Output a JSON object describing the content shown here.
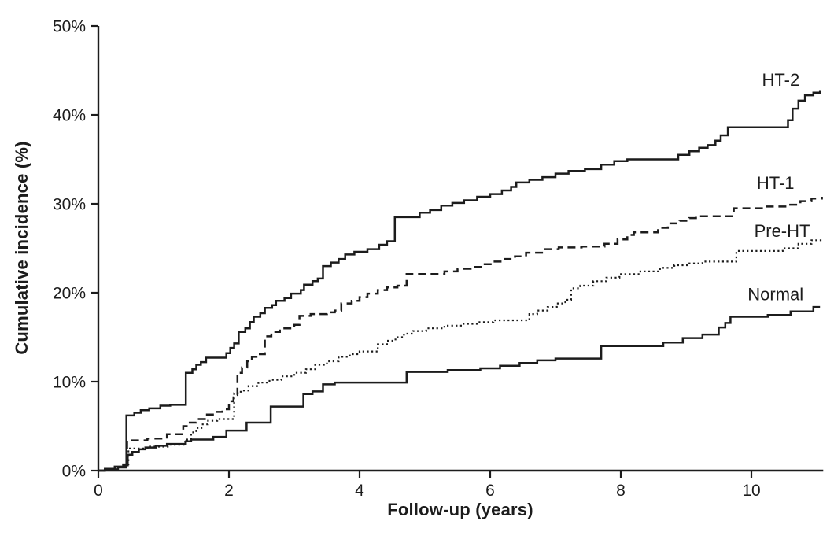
{
  "figure": {
    "background": "#ffffff",
    "ink_color": "#1c1c1c"
  },
  "chart_data": {
    "type": "line",
    "subtype": "step-cumulative-incidence",
    "xlabel": "Follow-up (years)",
    "ylabel": "Cumulative incidence (%)",
    "xlim": [
      0,
      11.1
    ],
    "ylim": [
      0,
      50
    ],
    "x_ticks": [
      0,
      2,
      4,
      6,
      8,
      10
    ],
    "x_tick_labels": [
      "0",
      "2",
      "4",
      "6",
      "8",
      "10"
    ],
    "y_ticks": [
      0,
      10,
      20,
      30,
      40,
      50
    ],
    "y_tick_labels": [
      "0%",
      "10%",
      "20%",
      "30%",
      "40%",
      "50%"
    ],
    "grid": false,
    "legend_position": "inline-right-labels",
    "series": [
      {
        "name": "HT-2",
        "line_style": "solid",
        "label_anchor": [
          10.45,
          43.9
        ],
        "points": [
          [
            0,
            0
          ],
          [
            0.1,
            0.2
          ],
          [
            0.25,
            0.45
          ],
          [
            0.38,
            0.7
          ],
          [
            0.43,
            6.2
          ],
          [
            0.55,
            6.5
          ],
          [
            0.65,
            6.8
          ],
          [
            0.78,
            7.0
          ],
          [
            0.95,
            7.3
          ],
          [
            1.1,
            7.4
          ],
          [
            1.34,
            11.0
          ],
          [
            1.44,
            11.4
          ],
          [
            1.5,
            11.9
          ],
          [
            1.57,
            12.2
          ],
          [
            1.65,
            12.7
          ],
          [
            1.96,
            13.2
          ],
          [
            2.02,
            13.8
          ],
          [
            2.08,
            14.3
          ],
          [
            2.15,
            15.6
          ],
          [
            2.25,
            16.0
          ],
          [
            2.32,
            16.7
          ],
          [
            2.38,
            17.3
          ],
          [
            2.48,
            17.7
          ],
          [
            2.55,
            18.3
          ],
          [
            2.66,
            18.6
          ],
          [
            2.72,
            19.1
          ],
          [
            2.85,
            19.4
          ],
          [
            2.95,
            19.9
          ],
          [
            3.1,
            20.3
          ],
          [
            3.15,
            20.9
          ],
          [
            3.28,
            21.3
          ],
          [
            3.36,
            21.6
          ],
          [
            3.44,
            23.0
          ],
          [
            3.56,
            23.4
          ],
          [
            3.68,
            23.8
          ],
          [
            3.78,
            24.3
          ],
          [
            3.92,
            24.6
          ],
          [
            4.12,
            24.9
          ],
          [
            4.3,
            25.4
          ],
          [
            4.42,
            25.8
          ],
          [
            4.54,
            28.5
          ],
          [
            4.92,
            29.0
          ],
          [
            5.08,
            29.3
          ],
          [
            5.25,
            29.8
          ],
          [
            5.42,
            30.1
          ],
          [
            5.6,
            30.4
          ],
          [
            5.8,
            30.8
          ],
          [
            6.0,
            31.1
          ],
          [
            6.18,
            31.5
          ],
          [
            6.32,
            31.9
          ],
          [
            6.4,
            32.4
          ],
          [
            6.6,
            32.7
          ],
          [
            6.8,
            33.0
          ],
          [
            7.0,
            33.4
          ],
          [
            7.2,
            33.7
          ],
          [
            7.45,
            33.9
          ],
          [
            7.7,
            34.4
          ],
          [
            7.9,
            34.8
          ],
          [
            8.1,
            35.0
          ],
          [
            8.88,
            35.5
          ],
          [
            9.05,
            35.9
          ],
          [
            9.2,
            36.3
          ],
          [
            9.33,
            36.6
          ],
          [
            9.45,
            37.1
          ],
          [
            9.53,
            37.7
          ],
          [
            9.64,
            38.6
          ],
          [
            10.56,
            39.4
          ],
          [
            10.63,
            40.7
          ],
          [
            10.72,
            41.6
          ],
          [
            10.82,
            42.2
          ],
          [
            10.95,
            42.5
          ],
          [
            11.05,
            42.7
          ]
        ]
      },
      {
        "name": "HT-1",
        "line_style": "dashed",
        "label_anchor": [
          10.37,
          32.3
        ],
        "points": [
          [
            0,
            0
          ],
          [
            0.1,
            0.15
          ],
          [
            0.28,
            0.4
          ],
          [
            0.4,
            0.6
          ],
          [
            0.44,
            3.4
          ],
          [
            0.75,
            3.6
          ],
          [
            1.05,
            4.1
          ],
          [
            1.3,
            5.0
          ],
          [
            1.4,
            5.4
          ],
          [
            1.5,
            5.8
          ],
          [
            1.63,
            6.3
          ],
          [
            1.78,
            6.6
          ],
          [
            1.9,
            6.9
          ],
          [
            2.0,
            7.8
          ],
          [
            2.07,
            8.5
          ],
          [
            2.13,
            11.0
          ],
          [
            2.2,
            11.6
          ],
          [
            2.28,
            12.3
          ],
          [
            2.35,
            12.8
          ],
          [
            2.42,
            13.1
          ],
          [
            2.55,
            15.1
          ],
          [
            2.65,
            15.6
          ],
          [
            2.78,
            16.0
          ],
          [
            3.0,
            16.4
          ],
          [
            3.08,
            17.4
          ],
          [
            3.25,
            17.6
          ],
          [
            3.5,
            17.8
          ],
          [
            3.62,
            18.0
          ],
          [
            3.72,
            18.8
          ],
          [
            3.88,
            19.1
          ],
          [
            4.0,
            19.5
          ],
          [
            4.12,
            19.9
          ],
          [
            4.28,
            20.3
          ],
          [
            4.42,
            20.6
          ],
          [
            4.58,
            20.8
          ],
          [
            4.72,
            22.1
          ],
          [
            5.3,
            22.4
          ],
          [
            5.5,
            22.7
          ],
          [
            5.7,
            22.9
          ],
          [
            5.9,
            23.2
          ],
          [
            6.05,
            23.5
          ],
          [
            6.2,
            23.8
          ],
          [
            6.38,
            24.1
          ],
          [
            6.55,
            24.5
          ],
          [
            6.82,
            24.9
          ],
          [
            7.05,
            25.1
          ],
          [
            7.4,
            25.2
          ],
          [
            7.75,
            25.5
          ],
          [
            7.95,
            26.0
          ],
          [
            8.1,
            26.5
          ],
          [
            8.2,
            26.8
          ],
          [
            8.57,
            27.3
          ],
          [
            8.72,
            27.8
          ],
          [
            8.9,
            28.1
          ],
          [
            9.05,
            28.4
          ],
          [
            9.15,
            28.6
          ],
          [
            9.73,
            29.5
          ],
          [
            10.2,
            29.7
          ],
          [
            10.58,
            29.9
          ],
          [
            10.75,
            30.3
          ],
          [
            10.92,
            30.6
          ],
          [
            11.08,
            30.8
          ]
        ]
      },
      {
        "name": "Pre-HT",
        "line_style": "dotted",
        "label_anchor": [
          10.47,
          26.9
        ],
        "points": [
          [
            0,
            0
          ],
          [
            0.1,
            0.15
          ],
          [
            0.3,
            0.4
          ],
          [
            0.42,
            0.7
          ],
          [
            0.46,
            2.5
          ],
          [
            0.8,
            2.7
          ],
          [
            1.1,
            2.9
          ],
          [
            1.33,
            3.5
          ],
          [
            1.42,
            4.3
          ],
          [
            1.5,
            4.8
          ],
          [
            1.58,
            5.2
          ],
          [
            1.68,
            5.6
          ],
          [
            1.82,
            5.8
          ],
          [
            2.08,
            8.7
          ],
          [
            2.18,
            9.0
          ],
          [
            2.3,
            9.5
          ],
          [
            2.45,
            9.9
          ],
          [
            2.62,
            10.2
          ],
          [
            2.8,
            10.6
          ],
          [
            3.0,
            11.0
          ],
          [
            3.18,
            11.4
          ],
          [
            3.32,
            11.9
          ],
          [
            3.5,
            12.3
          ],
          [
            3.68,
            12.8
          ],
          [
            3.85,
            13.1
          ],
          [
            4.0,
            13.4
          ],
          [
            4.28,
            14.2
          ],
          [
            4.42,
            14.6
          ],
          [
            4.55,
            15.0
          ],
          [
            4.68,
            15.4
          ],
          [
            4.82,
            15.7
          ],
          [
            5.02,
            16.0
          ],
          [
            5.3,
            16.3
          ],
          [
            5.58,
            16.5
          ],
          [
            5.82,
            16.7
          ],
          [
            6.05,
            16.9
          ],
          [
            6.6,
            17.6
          ],
          [
            6.72,
            18.0
          ],
          [
            6.88,
            18.4
          ],
          [
            7.02,
            18.8
          ],
          [
            7.15,
            19.2
          ],
          [
            7.24,
            20.5
          ],
          [
            7.38,
            20.8
          ],
          [
            7.58,
            21.3
          ],
          [
            7.78,
            21.7
          ],
          [
            7.98,
            22.1
          ],
          [
            8.3,
            22.4
          ],
          [
            8.6,
            22.8
          ],
          [
            8.82,
            23.1
          ],
          [
            9.05,
            23.3
          ],
          [
            9.25,
            23.5
          ],
          [
            9.77,
            24.7
          ],
          [
            10.48,
            25.0
          ],
          [
            10.72,
            25.5
          ],
          [
            10.92,
            25.9
          ],
          [
            11.08,
            26.1
          ]
        ]
      },
      {
        "name": "Normal",
        "line_style": "solid",
        "label_anchor": [
          10.37,
          19.8
        ],
        "points": [
          [
            0,
            0
          ],
          [
            0.1,
            0.1
          ],
          [
            0.3,
            0.35
          ],
          [
            0.42,
            0.6
          ],
          [
            0.45,
            1.8
          ],
          [
            0.52,
            2.1
          ],
          [
            0.62,
            2.4
          ],
          [
            0.72,
            2.6
          ],
          [
            0.88,
            2.8
          ],
          [
            1.05,
            3.0
          ],
          [
            1.34,
            3.3
          ],
          [
            1.42,
            3.5
          ],
          [
            1.76,
            3.8
          ],
          [
            1.96,
            4.5
          ],
          [
            2.27,
            5.4
          ],
          [
            2.64,
            7.2
          ],
          [
            3.14,
            8.6
          ],
          [
            3.28,
            8.9
          ],
          [
            3.44,
            9.7
          ],
          [
            3.62,
            9.9
          ],
          [
            4.72,
            11.1
          ],
          [
            5.35,
            11.3
          ],
          [
            5.85,
            11.5
          ],
          [
            6.15,
            11.8
          ],
          [
            6.45,
            12.1
          ],
          [
            6.72,
            12.4
          ],
          [
            7.0,
            12.6
          ],
          [
            7.7,
            14.0
          ],
          [
            8.65,
            14.4
          ],
          [
            8.95,
            14.9
          ],
          [
            9.25,
            15.3
          ],
          [
            9.5,
            16.1
          ],
          [
            9.6,
            16.6
          ],
          [
            9.68,
            17.3
          ],
          [
            10.25,
            17.5
          ],
          [
            10.6,
            17.9
          ],
          [
            10.95,
            18.4
          ],
          [
            11.05,
            18.4
          ]
        ]
      }
    ]
  }
}
